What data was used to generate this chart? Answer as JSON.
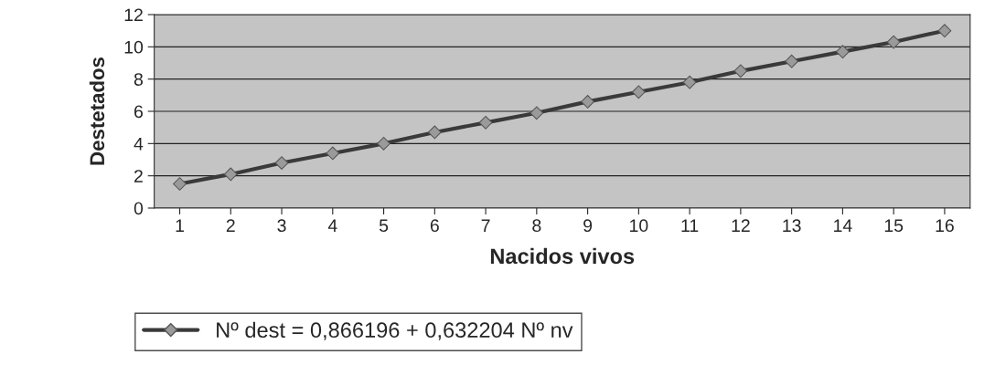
{
  "chart_data": {
    "type": "line",
    "xlabel": "Nacidos vivos",
    "ylabel": "Destetados",
    "categories": [
      "1",
      "2",
      "3",
      "4",
      "5",
      "6",
      "7",
      "8",
      "9",
      "10",
      "11",
      "12",
      "13",
      "14",
      "15",
      "16"
    ],
    "series": [
      {
        "name": "Nº dest = 0,866196 + 0,632204 Nº nv",
        "color": "#3a3a3a",
        "values": [
          1.5,
          2.1,
          2.8,
          3.4,
          4.0,
          4.7,
          5.3,
          5.9,
          6.6,
          7.2,
          7.8,
          8.5,
          9.1,
          9.7,
          10.3,
          11.0
        ]
      }
    ],
    "ylim": [
      0,
      12
    ],
    "yticks": [
      0,
      2,
      4,
      6,
      8,
      10,
      12
    ],
    "grid": "y",
    "legend": "bottom",
    "marker": "diamond",
    "line_style": "solid"
  }
}
